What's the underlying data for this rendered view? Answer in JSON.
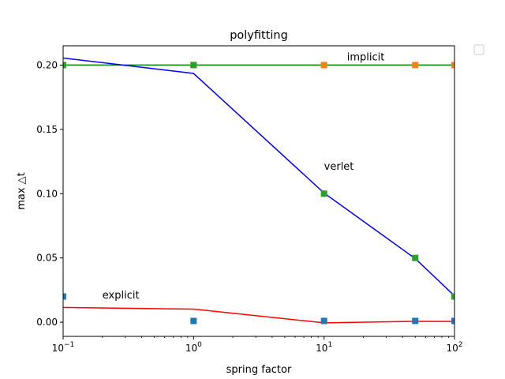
{
  "chart_data": {
    "type": "line",
    "title": "polyfitting",
    "xlabel": "spring factor",
    "ylabel": "max △t",
    "xscale": "log",
    "xlim": [
      0.1,
      100
    ],
    "ylim": [
      -0.011,
      0.215
    ],
    "x_ticks": [
      {
        "value": 0.1,
        "base": "10",
        "exp": "−1"
      },
      {
        "value": 1,
        "base": "10",
        "exp": "0"
      },
      {
        "value": 10,
        "base": "10",
        "exp": "1"
      },
      {
        "value": 100,
        "base": "10",
        "exp": "2"
      }
    ],
    "y_ticks": [
      {
        "value": 0.0,
        "label": "0.00"
      },
      {
        "value": 0.05,
        "label": "0.05"
      },
      {
        "value": 0.1,
        "label": "0.10"
      },
      {
        "value": 0.15,
        "label": "0.15"
      },
      {
        "value": 0.2,
        "label": "0.20"
      }
    ],
    "grid": false,
    "legend": "top-right (empty box outside plot)",
    "scatter_series": [
      {
        "color": "#1f77b4",
        "marker": "square",
        "x": [
          0.1,
          1,
          10,
          50,
          100
        ],
        "y": [
          0.02,
          0.001,
          0.001,
          0.001,
          0.001
        ]
      },
      {
        "color": "#ff7f0e",
        "marker": "square",
        "x": [
          0.1,
          1,
          10,
          50,
          100
        ],
        "y": [
          0.2,
          0.2,
          0.2,
          0.2,
          0.2
        ]
      },
      {
        "color": "#2ca02c",
        "marker": "square",
        "x": [
          0.1,
          1,
          10,
          50,
          100
        ],
        "y": [
          0.2,
          0.2,
          0.1,
          0.05,
          0.02
        ]
      }
    ],
    "fit_lines": [
      {
        "color": "#ff0000",
        "x": [
          0.1,
          1,
          10,
          50,
          100
        ],
        "y": [
          0.0115,
          0.0102,
          -0.0005,
          0.0007,
          0.0006
        ]
      },
      {
        "color": "#008000",
        "x": [
          0.1,
          1,
          10,
          50,
          100
        ],
        "y": [
          0.2,
          0.2,
          0.2,
          0.2,
          0.2
        ]
      },
      {
        "color": "#0000ff",
        "x": [
          0.1,
          1,
          10,
          50,
          100
        ],
        "y": [
          0.2055,
          0.1935,
          0.1005,
          0.0495,
          0.0205
        ]
      }
    ],
    "annotations": [
      {
        "text": "implicit",
        "x": 15,
        "y": 0.2035
      },
      {
        "text": "verlet",
        "x": 10,
        "y": 0.1185
      },
      {
        "text": "explicit",
        "x": 0.2,
        "y": 0.0185
      }
    ]
  }
}
